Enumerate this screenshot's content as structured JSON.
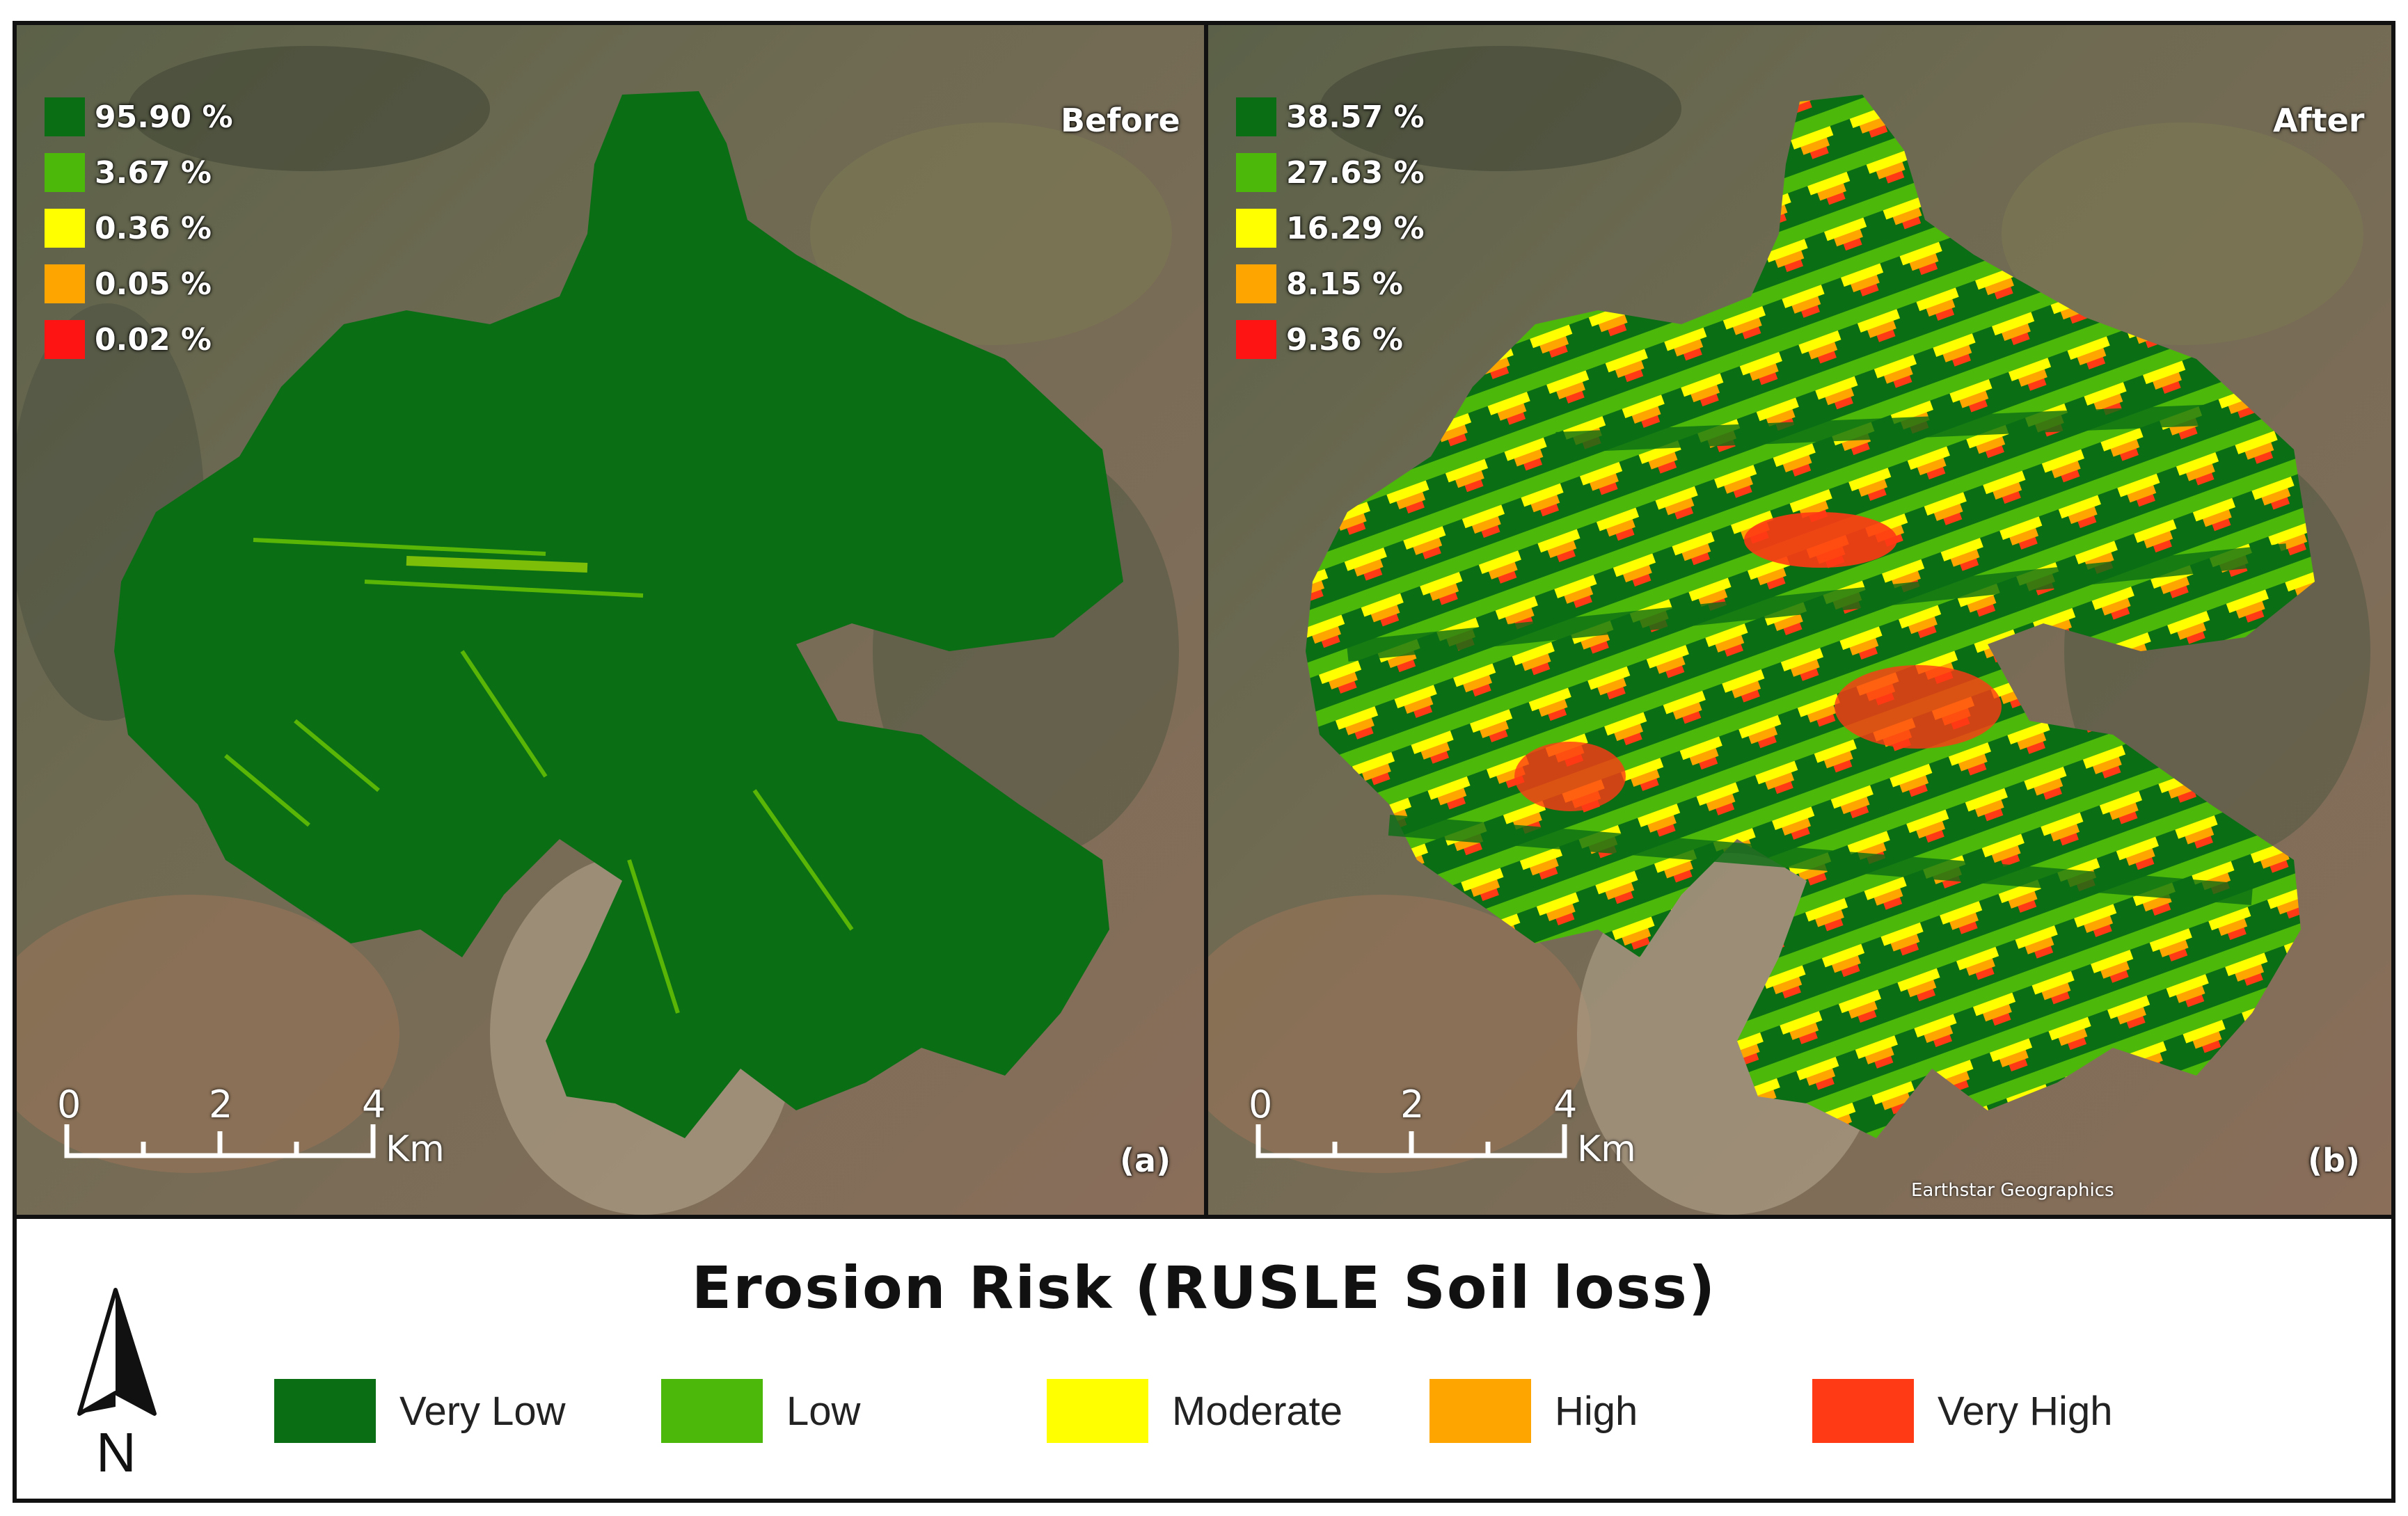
{
  "title": "Erosion Risk (RUSLE Soil loss)",
  "north_letter": "N",
  "classes": [
    {
      "label": "Very Low",
      "color": "#0a6e14"
    },
    {
      "label": "Low",
      "color": "#4cb80a"
    },
    {
      "label": "Moderate",
      "color": "#ffff00"
    },
    {
      "label": "High",
      "color": "#ffa500"
    },
    {
      "label": "Very High",
      "color": "#ff3a14"
    }
  ],
  "panels": [
    {
      "name": "Before",
      "tag": "(a)",
      "percentages": [
        "95.90 %",
        "3.67 %",
        "0.36 %",
        "0.05 %",
        "0.02 %"
      ]
    },
    {
      "name": "After",
      "tag": "(b)",
      "percentages": [
        "38.57 %",
        "27.63 %",
        "16.29 %",
        "8.15 %",
        "9.36 %"
      ]
    }
  ],
  "scalebar": {
    "ticks": [
      "0",
      "2",
      "4"
    ],
    "unit": "Km"
  },
  "attribution": "Earthstar Geographics"
}
